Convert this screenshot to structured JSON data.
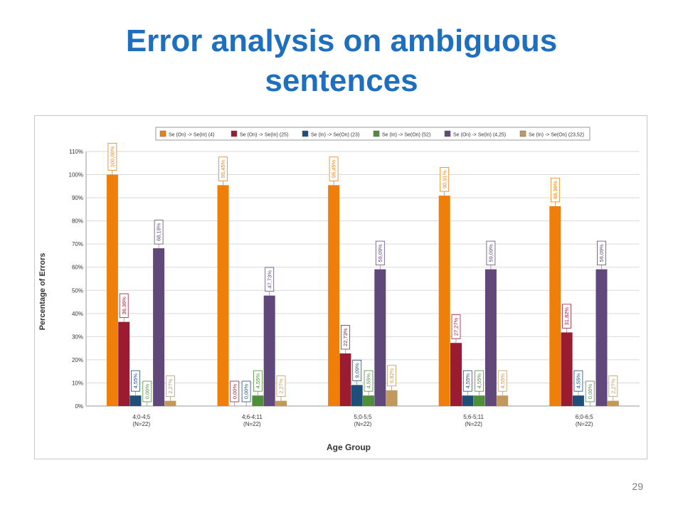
{
  "slide": {
    "title_line1": "Error analysis on ambiguous",
    "title_line2": "sentences",
    "page_number": "29"
  },
  "chart_data": {
    "type": "bar",
    "title": "",
    "xlabel": "Age Group",
    "ylabel": "Percentage of Errors",
    "ylim": [
      0,
      110
    ],
    "y_ticks": [
      0,
      10,
      20,
      30,
      40,
      50,
      60,
      70,
      80,
      90,
      100,
      110
    ],
    "y_tick_labels": [
      "0%",
      "10%",
      "20%",
      "30%",
      "40%",
      "50%",
      "60%",
      "70%",
      "80%",
      "90%",
      "100%",
      "110%"
    ],
    "grid": true,
    "legend_position": "top",
    "categories": [
      {
        "line1": "4;0-4;5",
        "line2": "(N=22)"
      },
      {
        "line1": "4;6-4;11",
        "line2": "(N=22)"
      },
      {
        "line1": "5;0-5;5",
        "line2": "(N=22)"
      },
      {
        "line1": "5;6-5;11",
        "line2": "(N=22)"
      },
      {
        "line1": "6;0-6;5",
        "line2": "(N=22)"
      }
    ],
    "series": [
      {
        "name": "Se (On) -> Se(In) (4)",
        "color": "#f07f09",
        "values": [
          100.0,
          95.45,
          95.45,
          90.91,
          86.36
        ],
        "labels": [
          "100,00%",
          "95,45%",
          "95,45%",
          "90,91%",
          "86,36%"
        ]
      },
      {
        "name": "Se (On) -> Se(In) (25)",
        "color": "#9b1c31",
        "values": [
          36.36,
          0.0,
          22.73,
          27.27,
          31.82
        ],
        "labels": [
          "36,36%",
          "0,00%",
          "22,73%",
          "27,27%",
          "31,82%"
        ]
      },
      {
        "name": "Se (In) -> Se(On) (23)",
        "color": "#1f4e79",
        "values": [
          4.55,
          0.0,
          9.09,
          4.55,
          4.55
        ],
        "labels": [
          "4,55%",
          "0,00%",
          "9,09%",
          "4,55%",
          "4,55%"
        ]
      },
      {
        "name": "Se (In) -> Se(On) (52)",
        "color": "#4f8f3a",
        "values": [
          0.0,
          4.55,
          4.55,
          4.55,
          0.0
        ],
        "labels": [
          "0,00%",
          "4,55%",
          "4,55%",
          "4,55%",
          "0,00%"
        ]
      },
      {
        "name": "Se (On) -> Se(In) (4,25)",
        "color": "#60497a",
        "values": [
          68.18,
          47.73,
          59.09,
          59.09,
          59.09
        ],
        "labels": [
          "68,18%",
          "47,73%",
          "59,09%",
          "59,09%",
          "59,09%"
        ]
      },
      {
        "name": "Se (In) -> Se(On) (23,52)",
        "color": "#c19a5b",
        "values": [
          2.27,
          2.27,
          6.82,
          4.55,
          2.27
        ],
        "labels": [
          "2,27%",
          "2,27%",
          "6,82%",
          "4,55%",
          "2,27%"
        ]
      }
    ]
  }
}
